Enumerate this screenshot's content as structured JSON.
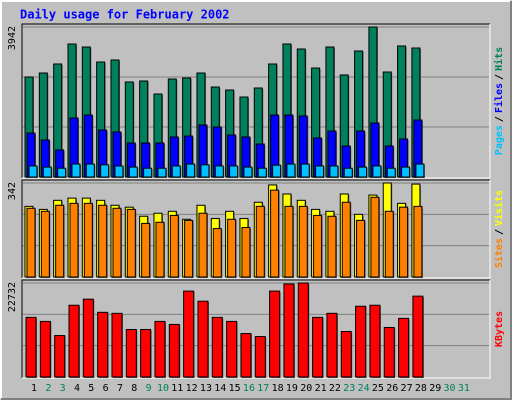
{
  "title": "Daily usage for February 2002",
  "legend_separator": "/",
  "weekday_label_color": "#000000",
  "weekend_label_color": "#00805c",
  "weekend_days": [
    2,
    3,
    9,
    10,
    16,
    17,
    23,
    24,
    30,
    31
  ],
  "chart_data": [
    {
      "type": "bar",
      "ylim": [
        0,
        3942
      ],
      "yticks": [
        3942
      ],
      "series": [
        {
          "name": "Hits",
          "color": "#00805c",
          "values": [
            2628,
            2733,
            2970,
            3495,
            3416,
            3022,
            3075,
            2497,
            2523,
            2181,
            2575,
            2602,
            2733,
            2365,
            2286,
            2102,
            2339,
            2970,
            3495,
            3364,
            2864,
            3416,
            2681,
            3311,
            3942,
            2759,
            3443,
            3390,
            null,
            null,
            null
          ]
        },
        {
          "name": "Files",
          "color": "#0000ff",
          "values": [
            1156,
            972,
            710,
            1551,
            1629,
            1235,
            1183,
            894,
            894,
            894,
            1051,
            1077,
            1367,
            1314,
            1104,
            1051,
            867,
            1629,
            1629,
            1603,
            1025,
            1209,
            815,
            1209,
            1419,
            815,
            999,
            1498,
            null,
            null,
            null
          ]
        },
        {
          "name": "Pages",
          "color": "#00c0ff",
          "values": [
            290,
            260,
            230,
            340,
            340,
            320,
            290,
            260,
            230,
            230,
            290,
            340,
            320,
            290,
            290,
            260,
            230,
            310,
            340,
            340,
            290,
            290,
            230,
            260,
            290,
            230,
            260,
            340,
            null,
            null,
            null
          ]
        }
      ]
    },
    {
      "type": "bar",
      "ylim": [
        0,
        342
      ],
      "yticks": [
        342
      ],
      "series": [
        {
          "name": "Visits",
          "color": "#ffff00",
          "values": [
            257,
            246,
            279,
            287,
            287,
            279,
            261,
            254,
            221,
            232,
            239,
            210,
            261,
            213,
            239,
            213,
            272,
            335,
            302,
            279,
            246,
            239,
            302,
            228,
            298,
            342,
            268,
            338,
            null,
            null,
            null
          ]
        },
        {
          "name": "Sites",
          "color": "#ff8000",
          "values": [
            250,
            239,
            261,
            268,
            268,
            261,
            250,
            246,
            195,
            199,
            224,
            206,
            232,
            176,
            210,
            180,
            257,
            316,
            257,
            257,
            224,
            221,
            272,
            206,
            290,
            239,
            254,
            257,
            null,
            null,
            null
          ]
        }
      ]
    },
    {
      "type": "bar",
      "ylim": [
        0,
        22732
      ],
      "yticks": [
        22732
      ],
      "categories": [
        "1",
        "2",
        "3",
        "4",
        "5",
        "6",
        "7",
        "8",
        "9",
        "10",
        "11",
        "12",
        "13",
        "14",
        "15",
        "16",
        "17",
        "18",
        "19",
        "20",
        "21",
        "22",
        "23",
        "24",
        "25",
        "26",
        "27",
        "28",
        "29",
        "30",
        "31"
      ],
      "series": [
        {
          "name": "KBytes",
          "color": "#ff0000",
          "values": [
            14421,
            13444,
            10021,
            17354,
            18821,
            15643,
            15398,
            11488,
            11488,
            13444,
            12710,
            20776,
            18332,
            14421,
            13444,
            10510,
            9777,
            20776,
            22487,
            22732,
            14421,
            15398,
            10999,
            17110,
            17354,
            11977,
            14177,
            19554,
            null,
            null,
            null
          ]
        }
      ]
    }
  ]
}
